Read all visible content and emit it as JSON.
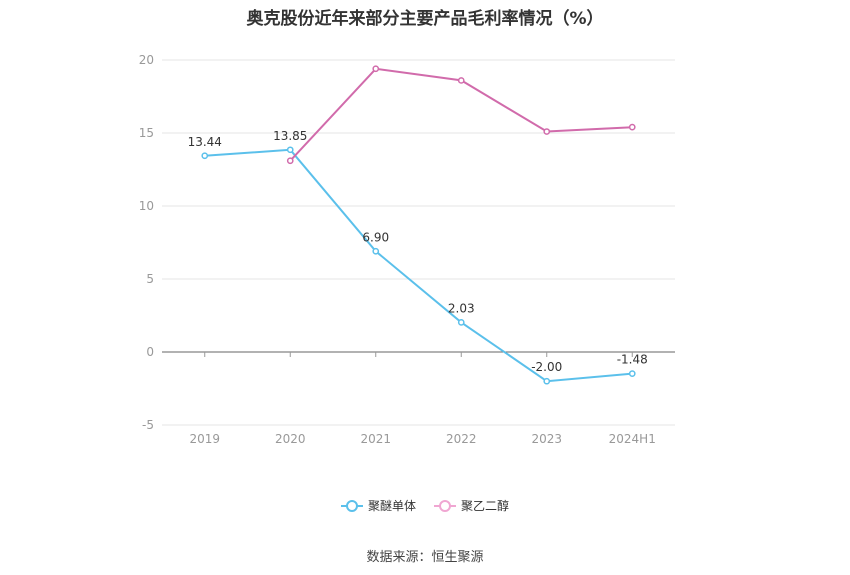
{
  "chart_data": {
    "type": "line",
    "title": "奥克股份近年来部分主要产品毛利率情况（%）",
    "categories": [
      "2019",
      "2020",
      "2021",
      "2022",
      "2023",
      "2024H1"
    ],
    "ylim": [
      -5,
      20
    ],
    "yticks": [
      -5,
      0,
      5,
      10,
      15,
      20
    ],
    "grid": true,
    "legend_position": "bottom",
    "series": [
      {
        "name": "聚醚单体",
        "color": "#5bc0eb",
        "values": [
          13.44,
          13.85,
          6.9,
          2.03,
          -2.0,
          -1.48
        ],
        "labels": [
          "13.44",
          "13.85",
          "6.90",
          "2.03",
          "-2.00",
          "-1.48"
        ]
      },
      {
        "name": "聚乙二醇",
        "color": "#d16bab",
        "values": [
          null,
          13.1,
          19.4,
          18.6,
          15.1,
          15.4
        ],
        "labels": []
      }
    ]
  },
  "source": "数据来源：恒生聚源"
}
